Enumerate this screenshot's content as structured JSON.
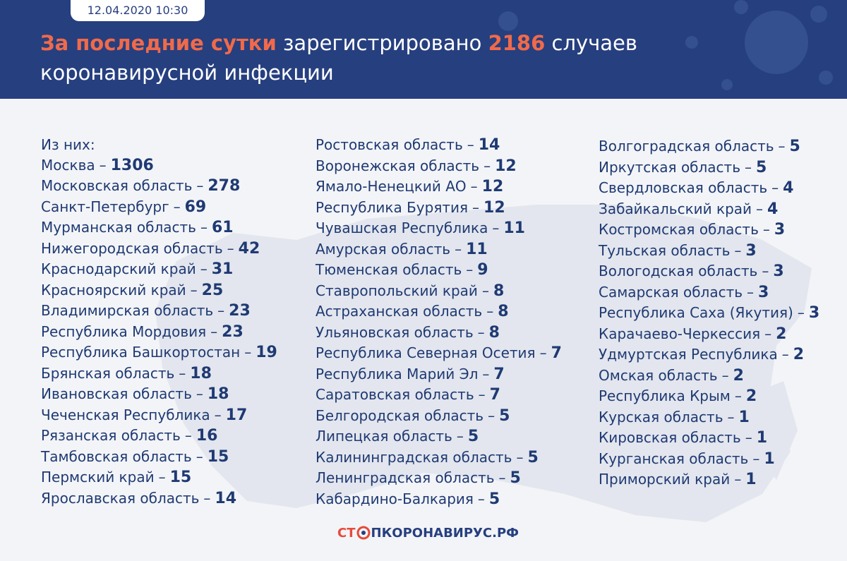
{
  "header": {
    "date": "12.04.2020 10:30",
    "title": {
      "highlight": "За последние сутки",
      "text": "зарегистрировано",
      "cases": 2186,
      "line1_end": "случаев",
      "line2": "коронавирусной инфекции"
    }
  },
  "list": {
    "intro": "Из них:",
    "separator": "–",
    "columns": [
      {
        "entries": [
          {
            "name": "Москва",
            "value": 1306
          },
          {
            "name": "Московская область",
            "value": 278
          },
          {
            "name": "Санкт-Петербург",
            "value": 69
          },
          {
            "name": "Мурманская область",
            "value": 61
          },
          {
            "name": "Нижегородская область",
            "value": 42
          },
          {
            "name": "Краснодарский край",
            "value": 31
          },
          {
            "name": "Красноярский край",
            "value": 25
          },
          {
            "name": "Владимирская область",
            "value": 23
          },
          {
            "name": "Республика Мордовия",
            "value": 23
          },
          {
            "name": "Республика Башкортостан",
            "value": 19
          },
          {
            "name": "Брянская область",
            "value": 18
          },
          {
            "name": "Ивановская область",
            "value": 18
          },
          {
            "name": "Чеченская Республика",
            "value": 17
          },
          {
            "name": "Рязанская область",
            "value": 16
          },
          {
            "name": "Тамбовская область",
            "value": 15
          },
          {
            "name": "Пермский край",
            "value": 15
          },
          {
            "name": "Ярославская область",
            "value": 14
          }
        ]
      },
      {
        "entries": [
          {
            "name": "Ростовская область",
            "value": 14
          },
          {
            "name": "Воронежская область",
            "value": 12
          },
          {
            "name": "Ямало-Ненецкий АО",
            "value": 12
          },
          {
            "name": "Республика Бурятия",
            "value": 12
          },
          {
            "name": "Чувашская Республика",
            "value": 11
          },
          {
            "name": "Амурская область",
            "value": 11
          },
          {
            "name": "Тюменская область",
            "value": 9
          },
          {
            "name": "Ставропольский край",
            "value": 8
          },
          {
            "name": "Астраханская область",
            "value": 8
          },
          {
            "name": "Ульяновская область",
            "value": 8
          },
          {
            "name": "Республика Северная Осетия",
            "value": 7
          },
          {
            "name": "Республика Марий Эл",
            "value": 7
          },
          {
            "name": "Саратовская область",
            "value": 7
          },
          {
            "name": "Белгородская область",
            "value": 5
          },
          {
            "name": "Липецкая область",
            "value": 5
          },
          {
            "name": "Калининградская область",
            "value": 5
          },
          {
            "name": "Ленинградская область",
            "value": 5
          },
          {
            "name": "Кабардино-Балкария",
            "value": 5
          }
        ]
      },
      {
        "entries": [
          {
            "name": "Волгоградская область",
            "value": 5
          },
          {
            "name": "Иркутская область",
            "value": 5
          },
          {
            "name": "Свердловская область",
            "value": 4
          },
          {
            "name": "Забайкальский край",
            "value": 4
          },
          {
            "name": "Костромская область",
            "value": 3
          },
          {
            "name": "Тульская область",
            "value": 3
          },
          {
            "name": "Вологодская область",
            "value": 3
          },
          {
            "name": "Самарская область",
            "value": 3
          },
          {
            "name": "Республика Саха (Якутия)",
            "value": 3
          },
          {
            "name": "Карачаево-Черкессия",
            "value": 2
          },
          {
            "name": "Удмуртская Республика",
            "value": 2
          },
          {
            "name": "Омская область",
            "value": 2
          },
          {
            "name": "Республика Крым",
            "value": 2
          },
          {
            "name": "Курская область",
            "value": 1
          },
          {
            "name": "Кировская область",
            "value": 1
          },
          {
            "name": "Курганская область",
            "value": 1
          },
          {
            "name": "Приморский край",
            "value": 1
          }
        ]
      }
    ]
  },
  "footer": {
    "logo_start": "СТ",
    "logo_end": "ПКОРОНАВИРУС.РФ"
  }
}
